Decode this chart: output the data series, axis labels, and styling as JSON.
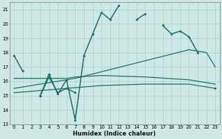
{
  "xlabel": "Humidex (Indice chaleur)",
  "xlim": [
    -0.5,
    23.5
  ],
  "ylim": [
    13,
    21.5
  ],
  "yticks": [
    13,
    14,
    15,
    16,
    17,
    18,
    19,
    20,
    21
  ],
  "xticks": [
    0,
    1,
    2,
    3,
    4,
    5,
    6,
    7,
    8,
    9,
    10,
    11,
    12,
    13,
    14,
    15,
    16,
    17,
    18,
    19,
    20,
    21,
    22,
    23
  ],
  "bg_color": "#cde8e5",
  "grid_color": "#aed4d0",
  "line_color": "#1a6e65",
  "curve1": {
    "x": [
      0,
      1,
      2,
      3,
      4,
      5,
      6,
      7,
      8,
      9,
      10,
      11,
      12,
      14,
      15,
      17,
      18,
      19,
      20,
      21,
      23
    ],
    "y": [
      17.8,
      16.7,
      null,
      15.0,
      16.5,
      15.1,
      16.1,
      13.3,
      17.8,
      19.3,
      20.8,
      20.3,
      21.3,
      20.3,
      20.7,
      19.9,
      19.3,
      19.5,
      19.1,
      18.0,
      15.5
    ]
  },
  "curve2": {
    "x": [
      3,
      4,
      5,
      6,
      7
    ],
    "y": [
      15.0,
      16.3,
      15.2,
      15.5,
      15.2
    ]
  },
  "line_diag": {
    "x": [
      0,
      7,
      20,
      21,
      22,
      23
    ],
    "y": [
      15.5,
      16.2,
      18.2,
      18.1,
      18.0,
      17.0
    ]
  },
  "line_flat1": {
    "x": [
      0,
      6,
      7,
      10,
      15,
      20,
      21,
      22,
      23
    ],
    "y": [
      16.2,
      16.2,
      16.3,
      16.4,
      16.3,
      16.1,
      16.0,
      15.9,
      15.8
    ]
  },
  "line_flat2": {
    "x": [
      0,
      6,
      10,
      15,
      20,
      23
    ],
    "y": [
      15.2,
      15.5,
      15.7,
      15.8,
      15.8,
      15.5
    ]
  }
}
